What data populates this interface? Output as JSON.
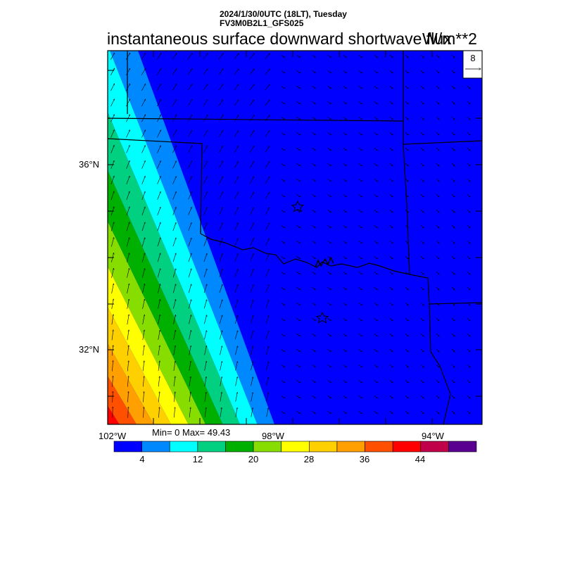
{
  "header": {
    "datetime": "2024/1/30/0UTC (18LT), Tuesday",
    "model": "FV3M0B2L1_GFS025",
    "field_title": "instantaneous surface downward shortwave flux",
    "units": "W/m**2"
  },
  "reference_vector": {
    "magnitude": "8"
  },
  "axes": {
    "lat_labels": [
      "36°N",
      "32°N"
    ],
    "lon_labels": [
      "102°W",
      "98°W",
      "94°W"
    ]
  },
  "stats": {
    "text": "Min= 0 Max= 49.43",
    "min": 0,
    "max": 49.43
  },
  "colorbar": {
    "labels": [
      "4",
      "12",
      "20",
      "28",
      "36",
      "44"
    ],
    "label_values": [
      4,
      12,
      20,
      28,
      36,
      44
    ],
    "level_step": 4,
    "colors": [
      "#0000ff",
      "#0088ff",
      "#00ffff",
      "#00d080",
      "#00b000",
      "#88dd00",
      "#ffff00",
      "#ffd000",
      "#ffa000",
      "#ff5000",
      "#ff0000",
      "#c00048",
      "#5a0090"
    ]
  },
  "markers": [
    {
      "type": "star"
    },
    {
      "type": "star"
    }
  ]
}
